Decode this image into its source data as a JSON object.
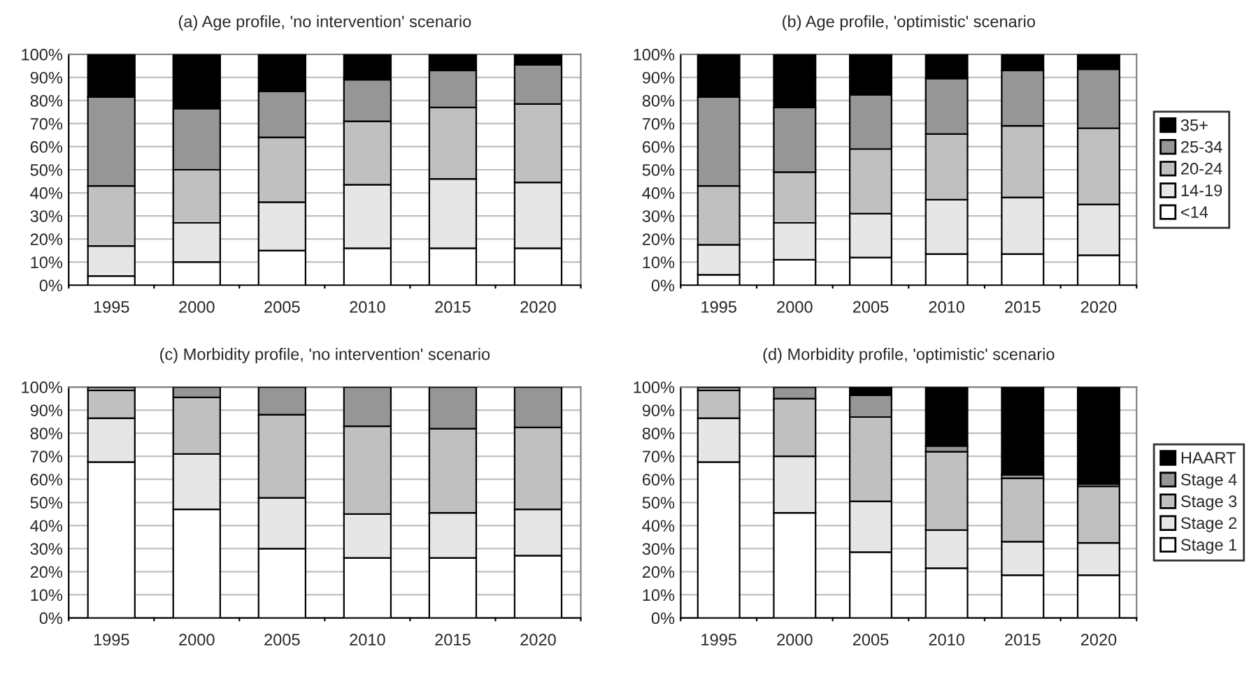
{
  "chart_data": [
    {
      "type": "bar",
      "stacked": true,
      "title": "(a) Age profile, 'no intervention' scenario",
      "categories": [
        "1995",
        "2000",
        "2005",
        "2010",
        "2015",
        "2020"
      ],
      "ylim": [
        0,
        100
      ],
      "yticks": [
        {
          "value": 0,
          "label": "0%"
        },
        {
          "value": 10,
          "label": "10%"
        },
        {
          "value": 20,
          "label": "20%"
        },
        {
          "value": 30,
          "label": "30%"
        },
        {
          "value": 40,
          "label": "40%"
        },
        {
          "value": 50,
          "label": "50%"
        },
        {
          "value": 60,
          "label": "60%"
        },
        {
          "value": 70,
          "label": "70%"
        },
        {
          "value": 80,
          "label": "80%"
        },
        {
          "value": 90,
          "label": "90%"
        },
        {
          "value": 100,
          "label": "100%"
        }
      ],
      "grid": "y",
      "legend": false,
      "series": [
        {
          "color": "#ffffff",
          "values": [
            4,
            10,
            15,
            16,
            16,
            16
          ]
        },
        {
          "color": "#e6e6e6",
          "values": [
            13,
            17,
            21,
            27.5,
            30,
            28.5
          ]
        },
        {
          "color": "#c0c0c0",
          "values": [
            26,
            23,
            28,
            27.5,
            31,
            34
          ]
        },
        {
          "color": "#969696",
          "values": [
            38.5,
            26.5,
            20,
            18,
            16,
            17
          ]
        },
        {
          "color": "#000000",
          "values": [
            18.5,
            23.5,
            16,
            11,
            7,
            4.5
          ]
        }
      ]
    },
    {
      "type": "bar",
      "stacked": true,
      "title": "(b) Age profile, 'optimistic' scenario",
      "categories": [
        "1995",
        "2000",
        "2005",
        "2010",
        "2015",
        "2020"
      ],
      "ylim": [
        0,
        100
      ],
      "yticks": [
        {
          "value": 0,
          "label": "0%"
        },
        {
          "value": 10,
          "label": "10%"
        },
        {
          "value": 20,
          "label": "20%"
        },
        {
          "value": 30,
          "label": "30%"
        },
        {
          "value": 40,
          "label": "40%"
        },
        {
          "value": 50,
          "label": "50%"
        },
        {
          "value": 60,
          "label": "60%"
        },
        {
          "value": 70,
          "label": "70%"
        },
        {
          "value": 80,
          "label": "80%"
        },
        {
          "value": 90,
          "label": "90%"
        },
        {
          "value": 100,
          "label": "100%"
        }
      ],
      "grid": "y",
      "legend": "right",
      "series": [
        {
          "name": "<14",
          "color": "#ffffff",
          "values": [
            4.5,
            11,
            12,
            13.5,
            13.5,
            13
          ]
        },
        {
          "name": "14-19",
          "color": "#e6e6e6",
          "values": [
            13,
            16,
            19,
            23.5,
            24.5,
            22
          ]
        },
        {
          "name": "20-24",
          "color": "#c0c0c0",
          "values": [
            25.5,
            22,
            28,
            28.5,
            31,
            33
          ]
        },
        {
          "name": "25-34",
          "color": "#969696",
          "values": [
            38.5,
            28,
            23.5,
            24,
            24,
            25.5
          ]
        },
        {
          "name": "35+",
          "color": "#000000",
          "values": [
            18.5,
            23,
            17.5,
            10.5,
            7,
            6.5
          ]
        }
      ]
    },
    {
      "type": "bar",
      "stacked": true,
      "title": "(c) Morbidity profile, 'no intervention' scenario",
      "categories": [
        "1995",
        "2000",
        "2005",
        "2010",
        "2015",
        "2020"
      ],
      "ylim": [
        0,
        100
      ],
      "yticks": [
        {
          "value": 0,
          "label": "0%"
        },
        {
          "value": 10,
          "label": "10%"
        },
        {
          "value": 20,
          "label": "20%"
        },
        {
          "value": 30,
          "label": "30%"
        },
        {
          "value": 40,
          "label": "40%"
        },
        {
          "value": 50,
          "label": "50%"
        },
        {
          "value": 60,
          "label": "60%"
        },
        {
          "value": 70,
          "label": "70%"
        },
        {
          "value": 80,
          "label": "80%"
        },
        {
          "value": 90,
          "label": "90%"
        },
        {
          "value": 100,
          "label": "100%"
        }
      ],
      "grid": "y",
      "legend": false,
      "series": [
        {
          "color": "#ffffff",
          "values": [
            67.5,
            47,
            30,
            26,
            26,
            27
          ]
        },
        {
          "color": "#e6e6e6",
          "values": [
            19,
            24,
            22,
            19,
            19.5,
            20
          ]
        },
        {
          "color": "#c0c0c0",
          "values": [
            12,
            24.5,
            36,
            38,
            36.5,
            35.5
          ]
        },
        {
          "color": "#969696",
          "values": [
            1.5,
            4.5,
            12,
            17,
            18,
            17.5
          ]
        }
      ]
    },
    {
      "type": "bar",
      "stacked": true,
      "title": "(d) Morbidity profile, 'optimistic' scenario",
      "categories": [
        "1995",
        "2000",
        "2005",
        "2010",
        "2015",
        "2020"
      ],
      "ylim": [
        0,
        100
      ],
      "yticks": [
        {
          "value": 0,
          "label": "0%"
        },
        {
          "value": 10,
          "label": "10%"
        },
        {
          "value": 20,
          "label": "20%"
        },
        {
          "value": 30,
          "label": "30%"
        },
        {
          "value": 40,
          "label": "40%"
        },
        {
          "value": 50,
          "label": "50%"
        },
        {
          "value": 60,
          "label": "60%"
        },
        {
          "value": 70,
          "label": "70%"
        },
        {
          "value": 80,
          "label": "80%"
        },
        {
          "value": 90,
          "label": "90%"
        },
        {
          "value": 100,
          "label": "100%"
        }
      ],
      "grid": "y",
      "legend": "right",
      "series": [
        {
          "name": "Stage 1",
          "color": "#ffffff",
          "values": [
            67.5,
            45.5,
            28.5,
            21.5,
            18.5,
            18.5
          ]
        },
        {
          "name": "Stage 2",
          "color": "#e6e6e6",
          "values": [
            19,
            24.5,
            22,
            16.5,
            14.5,
            14
          ]
        },
        {
          "name": "Stage 3",
          "color": "#c0c0c0",
          "values": [
            12,
            25,
            36.5,
            34,
            27.5,
            24.5
          ]
        },
        {
          "name": "Stage 4",
          "color": "#969696",
          "values": [
            1.5,
            5,
            9.5,
            2.5,
            1.5,
            1
          ]
        },
        {
          "name": "HAART",
          "color": "#000000",
          "values": [
            0,
            0,
            3.5,
            25.5,
            38,
            42
          ]
        }
      ]
    }
  ]
}
